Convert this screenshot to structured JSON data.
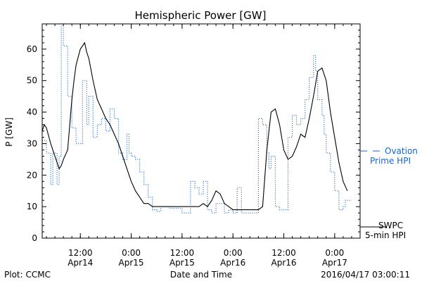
{
  "chart_data": {
    "type": "line",
    "title": "Hemispheric Power [GW]",
    "xlabel": "Date and Time",
    "ylabel": "P [GW]",
    "ylim": [
      0,
      68
    ],
    "yticks": [
      0,
      10,
      20,
      30,
      40,
      50,
      60
    ],
    "xlim": [
      0,
      75
    ],
    "x_unit": "hours since 2016-04-13 03:00",
    "xticks": [
      {
        "x": 9,
        "time": "12:00",
        "date": "Apr14"
      },
      {
        "x": 21,
        "time": "0:00",
        "date": "Apr15"
      },
      {
        "x": 33,
        "time": "12:00",
        "date": "Apr15"
      },
      {
        "x": 45,
        "time": "0:00",
        "date": "Apr16"
      },
      {
        "x": 57,
        "time": "12:00",
        "date": "Apr16"
      },
      {
        "x": 69,
        "time": "0:00",
        "date": "Apr17"
      }
    ],
    "grid": false,
    "legend_position": "right",
    "series": [
      {
        "name": "Ovation Prime HPI",
        "color": "#1a64c8",
        "style": "dotted-step",
        "x": [
          0,
          1,
          2,
          2.5,
          3.5,
          4,
          4.5,
          5,
          6,
          7,
          8,
          9.5,
          10.5,
          11,
          12,
          13,
          14,
          15,
          16,
          17,
          18,
          19,
          20,
          20.5,
          21,
          22,
          23,
          24,
          25,
          26,
          27,
          28,
          30,
          33,
          35,
          36,
          37,
          38,
          39,
          40,
          41,
          43,
          44,
          45,
          46,
          47,
          48,
          51,
          52,
          53,
          53.5,
          54,
          55,
          56,
          58,
          59,
          59.5,
          60,
          61,
          62,
          63,
          64,
          64.5,
          65,
          66,
          66.5,
          67,
          68,
          69,
          70,
          71,
          71.5,
          72
        ],
        "values": [
          31,
          27,
          17,
          27,
          17,
          26,
          68,
          61,
          45,
          35,
          30,
          50,
          36,
          45,
          32,
          36,
          38,
          34,
          41,
          38,
          27,
          25,
          33,
          27,
          26,
          25,
          21,
          17,
          13,
          9,
          8.5,
          10,
          9.5,
          8,
          18,
          16,
          14,
          18,
          9,
          8,
          11,
          8,
          9,
          8,
          16,
          8,
          8,
          38,
          36,
          27,
          22,
          26,
          10,
          9,
          32,
          39,
          39,
          36,
          38,
          44,
          51,
          58,
          53,
          44,
          39,
          33,
          27,
          21,
          15,
          9,
          10,
          12,
          12
        ]
      },
      {
        "name": "SWPC 5-min HPI",
        "color": "#000000",
        "style": "solid",
        "x": [
          0,
          0.5,
          1,
          2,
          3,
          4,
          4.5,
          5,
          6,
          7,
          7.5,
          8,
          9,
          10,
          10.5,
          11,
          12,
          13,
          14,
          15,
          16,
          17,
          18,
          19,
          20,
          21,
          22,
          23,
          24,
          25,
          26,
          27,
          28,
          29,
          30,
          31,
          32,
          33,
          34,
          35,
          36,
          37,
          38,
          39,
          40,
          41,
          42,
          43,
          44,
          45,
          46,
          47,
          48,
          49,
          50,
          51,
          52,
          53,
          54,
          55,
          56,
          57,
          58,
          59,
          60,
          61,
          62,
          63,
          64,
          65,
          66,
          67,
          68,
          69,
          70,
          71,
          72
        ],
        "values": [
          34,
          36,
          35,
          30,
          26,
          22,
          23,
          25,
          28,
          44,
          50,
          55,
          60,
          62,
          59,
          57,
          50,
          44,
          41,
          38,
          36,
          33,
          30,
          26,
          22,
          18,
          15,
          13,
          11,
          11,
          10,
          10,
          10,
          10,
          10,
          10,
          10,
          10,
          10,
          10,
          10,
          10,
          11,
          10,
          12,
          15,
          14,
          11,
          10,
          9,
          9,
          9,
          9,
          9,
          9,
          9,
          10,
          28,
          40,
          41,
          36,
          28,
          25,
          26,
          29,
          33,
          32,
          38,
          45,
          53,
          54,
          50,
          40,
          32,
          24,
          18,
          15
        ]
      }
    ],
    "legend": [
      {
        "line1": "Ovation",
        "line2": "Prime HPI",
        "color": "#1a64c8",
        "style": "dashed"
      },
      {
        "line1": "SWPC",
        "line2": "5-min HPI",
        "color": "#000000",
        "style": "solid"
      }
    ]
  },
  "footer": {
    "left": "Plot: CCMC",
    "center": "Date and Time",
    "right": "2016/04/17 03:00:11"
  }
}
